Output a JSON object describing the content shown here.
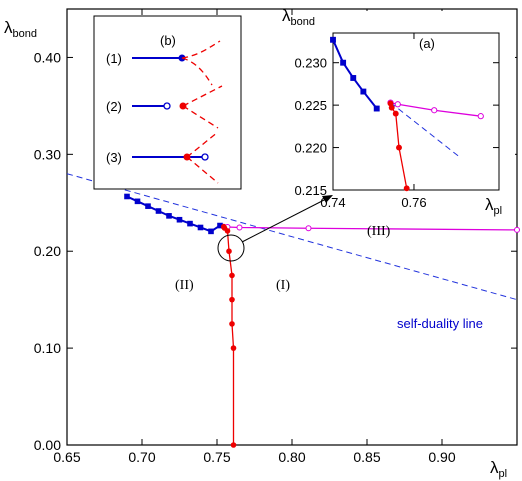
{
  "colors": {
    "blue": "#0000cc",
    "red": "#ee0000",
    "magenta": "#dd00dd",
    "dashed": "#2233dd",
    "axis": "#000000"
  },
  "chart_data": [
    {
      "id": "main",
      "type": "line",
      "xlabel": {
        "main": "λ",
        "sub": "pl"
      },
      "ylabel": {
        "main": "λ",
        "sub": "bond"
      },
      "xlim": [
        0.65,
        0.95
      ],
      "ylim": [
        0.0,
        0.45
      ],
      "xticks": [
        0.65,
        0.7,
        0.75,
        0.8,
        0.85,
        0.9
      ],
      "xtick_labels": [
        "0.65",
        "0.70",
        "0.75",
        "0.80",
        "0.85",
        "0.90"
      ],
      "yticks": [
        0.0,
        0.1,
        0.2,
        0.3,
        0.4
      ],
      "ytick_labels": [
        "0.00",
        "0.10",
        "0.20",
        "0.30",
        "0.40"
      ],
      "series": [
        {
          "key": "blue",
          "style": "square-filled",
          "x": [
            0.69,
            0.697,
            0.704,
            0.711,
            0.718,
            0.725,
            0.732,
            0.739,
            0.746,
            0.752
          ],
          "y": [
            0.2565,
            0.2515,
            0.2465,
            0.2415,
            0.2365,
            0.2325,
            0.2285,
            0.2245,
            0.2205,
            0.2265
          ]
        },
        {
          "key": "magenta",
          "style": "circle-open",
          "x": [
            0.7545,
            0.757,
            0.765,
            0.811,
            0.95
          ],
          "y": [
            0.2253,
            0.225,
            0.2245,
            0.2237,
            0.222
          ]
        },
        {
          "key": "red",
          "style": "circle-filled",
          "x": [
            0.7545,
            0.755,
            0.757,
            0.758,
            0.76,
            0.76,
            0.76,
            0.761,
            0.761
          ],
          "y": [
            0.2253,
            0.224,
            0.221,
            0.2,
            0.175,
            0.15,
            0.125,
            0.1,
            0.0
          ]
        },
        {
          "key": "dashed",
          "style": "dashed",
          "x": [
            0.65,
            0.95
          ],
          "y": [
            0.28,
            0.15
          ]
        }
      ],
      "annotations": {
        "self_duality": "self-duality line",
        "region_II": "(II)",
        "region_I": "(I)",
        "region_III": "(III)"
      }
    },
    {
      "id": "inset_a",
      "type": "line",
      "title": "(a)",
      "xlabel": {
        "main": "λ",
        "sub": "pl"
      },
      "ylabel": {
        "main": "λ",
        "sub": "bond"
      },
      "xlim": [
        0.74,
        0.781
      ],
      "ylim": [
        0.215,
        0.2335
      ],
      "xticks": [
        0.74,
        0.76
      ],
      "xtick_labels": [
        "0.74",
        "0.76"
      ],
      "yticks": [
        0.215,
        0.22,
        0.225,
        0.23
      ],
      "ytick_labels": [
        "0.215",
        "0.220",
        "0.225",
        "0.230"
      ],
      "series": [
        {
          "key": "blue",
          "style": "square-filled",
          "x": [
            0.74,
            0.7425,
            0.745,
            0.7475,
            0.7508
          ],
          "y": [
            0.2327,
            0.23,
            0.2282,
            0.2266,
            0.2246
          ]
        },
        {
          "key": "magenta",
          "style": "circle-open",
          "x": [
            0.7542,
            0.756,
            0.765,
            0.7765
          ],
          "y": [
            0.2253,
            0.2251,
            0.2244,
            0.2237
          ]
        },
        {
          "key": "red",
          "style": "circle-filled",
          "x": [
            0.7542,
            0.7545,
            0.7555,
            0.7563,
            0.7582
          ],
          "y": [
            0.2252,
            0.2247,
            0.224,
            0.22,
            0.2152
          ]
        },
        {
          "key": "dashed",
          "style": "dashed",
          "x": [
            0.7542,
            0.7715
          ],
          "y": [
            0.2253,
            0.2188
          ]
        }
      ]
    }
  ],
  "inset_b": {
    "title": "(b)",
    "items": [
      {
        "label": "(1)",
        "variant": "filled-end"
      },
      {
        "label": "(2)",
        "variant": "open-gap-filled"
      },
      {
        "label": "(3)",
        "variant": "filled-open"
      }
    ]
  }
}
